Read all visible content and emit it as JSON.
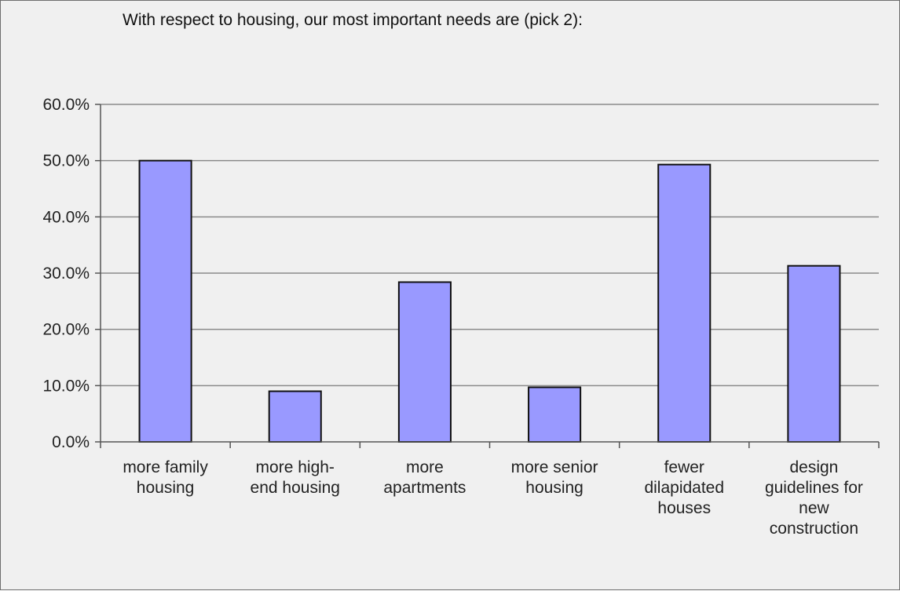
{
  "chart_data": {
    "type": "bar",
    "title": "With respect to housing, our most important needs are (pick 2):",
    "xlabel": "",
    "ylabel": "",
    "categories": [
      [
        "more family",
        "housing"
      ],
      [
        "more high-",
        "end housing"
      ],
      [
        "more",
        "apartments"
      ],
      [
        "more senior",
        "housing"
      ],
      [
        "fewer",
        "dilapidated",
        "houses"
      ],
      [
        "design",
        "guidelines for",
        "new",
        "construction"
      ]
    ],
    "values": [
      50.0,
      9.0,
      28.4,
      9.7,
      49.3,
      31.3
    ],
    "ylim": [
      0,
      60
    ],
    "ytick_values": [
      0,
      10,
      20,
      30,
      40,
      50,
      60
    ],
    "yticks": [
      "0.0%",
      "10.0%",
      "20.0%",
      "30.0%",
      "40.0%",
      "50.0%",
      "60.0%"
    ],
    "grid": true,
    "legend": "none",
    "colors": {
      "bar_fill": "#9999ff",
      "bar_stroke": "#111111",
      "background": "#f0f0f0",
      "gridline": "#8a8a8a"
    }
  }
}
